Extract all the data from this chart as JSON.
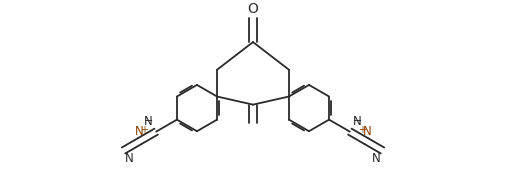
{
  "bg_color": "#ffffff",
  "line_color": "#2a2a2a",
  "line_width": 1.3,
  "dbo": 0.006,
  "figsize": [
    5.06,
    1.96
  ],
  "dpi": 100,
  "xlim": [
    -2.6,
    2.6
  ],
  "ylim": [
    -1.05,
    1.05
  ]
}
